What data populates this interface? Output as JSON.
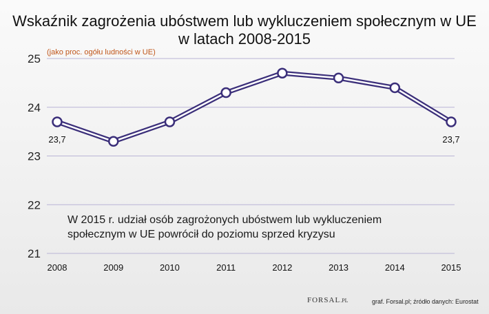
{
  "title_line1": "Wskaźnik zagrożenia ubóstwem lub wykluczeniem społecznym w UE",
  "title_line2": "w latach 2008-2015",
  "subtitle": "(jako proc. ogółu ludności w UE)",
  "note_line1": "W 2015 r. udział osób zagrożonych ubóstwem lub wykluczeniem",
  "note_line2": "społecznym w UE powrócił do poziomu sprzed kryzysu",
  "credit": "graf. Forsal.pl; źródło danych: Eurostat",
  "logo": {
    "main": "FORSAL",
    "suffix": ".PL"
  },
  "colors": {
    "line": "#3b2f7a",
    "marker_fill": "#ffffff",
    "grid": "#b9b3d6",
    "subtitle": "#c0561a"
  },
  "chart_data": {
    "type": "line",
    "categories": [
      "2008",
      "2009",
      "2010",
      "2011",
      "2012",
      "2013",
      "2014",
      "2015"
    ],
    "values": [
      23.7,
      23.3,
      23.7,
      24.3,
      24.7,
      24.6,
      24.4,
      23.7
    ],
    "data_labels": [
      "23,7",
      "",
      "",
      "",
      "",
      "",
      "",
      "23,7"
    ],
    "y_ticks": [
      "21",
      "22",
      "23",
      "24",
      "25"
    ],
    "ylim": [
      21,
      25
    ],
    "grid": true
  }
}
